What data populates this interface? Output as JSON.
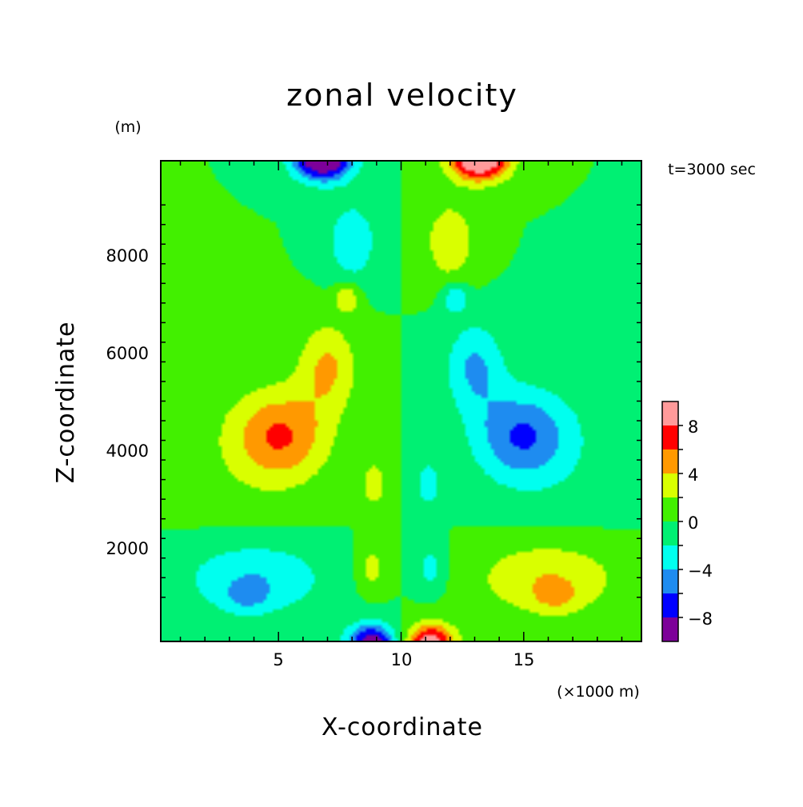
{
  "chart_data": {
    "type": "heatmap",
    "title": "zonal velocity",
    "time_label": "t=3000 sec",
    "xlabel": "X-coordinate",
    "ylabel": "Z-coordinate",
    "x_unit": "(×1000 m)",
    "y_unit": "(m)",
    "xlim": [
      0.2,
      19.8
    ],
    "ylim": [
      100,
      9900
    ],
    "x_ticks": [
      5,
      10,
      15
    ],
    "y_ticks": [
      2000,
      4000,
      6000,
      8000
    ],
    "colorbar": {
      "levels": [
        -10,
        -8,
        -6,
        -4,
        -2,
        0,
        2,
        4,
        6,
        8,
        10
      ],
      "tick_labels": [
        "8",
        "4",
        "0",
        "−4",
        "−8"
      ],
      "tick_values": [
        8,
        4,
        0,
        -4,
        -8
      ],
      "colors": [
        "#7d0099",
        "#0000ff",
        "#1e8cf0",
        "#00ffef",
        "#00f073",
        "#42f000",
        "#d9ff00",
        "#ff9900",
        "#ff0000",
        "#ff9a9a"
      ]
    },
    "features": [
      {
        "x": 5.1,
        "z": 4300,
        "amp": 5.5,
        "sx": 1.9,
        "sz": 900
      },
      {
        "x": 7.0,
        "z": 5700,
        "amp": 4.2,
        "sx": 1.2,
        "sz": 900
      },
      {
        "x": 3.6,
        "z": 3800,
        "amp": 1.2,
        "sx": 3.2,
        "sz": 1700
      },
      {
        "x": 4.0,
        "z": 1400,
        "amp": -4.0,
        "sx": 3.0,
        "sz": 800
      },
      {
        "x": 3.7,
        "z": 1000,
        "amp": -2.3,
        "sx": 0.9,
        "sz": 300
      },
      {
        "x": 6.8,
        "z": 9950,
        "amp": -12.0,
        "sx": 1.2,
        "sz": 450
      },
      {
        "x": 8.8,
        "z": 50,
        "amp": -10.0,
        "sx": 1.0,
        "sz": 400
      },
      {
        "x": 8.0,
        "z": 8250,
        "amp": -3.8,
        "sx": 1.0,
        "sz": 800
      },
      {
        "x": 7.8,
        "z": 7100,
        "amp": 4.0,
        "sx": 0.5,
        "sz": 300
      },
      {
        "x": 8.9,
        "z": 3300,
        "amp": 3.2,
        "sx": 0.5,
        "sz": 500
      },
      {
        "x": 8.8,
        "z": 1600,
        "amp": 3.0,
        "sx": 0.6,
        "sz": 500
      }
    ]
  }
}
